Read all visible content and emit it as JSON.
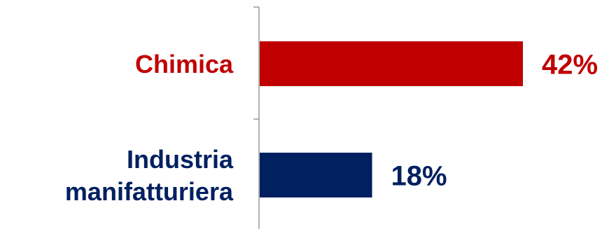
{
  "chart_data": {
    "type": "bar",
    "orientation": "horizontal",
    "categories": [
      "Chimica",
      "Industria manifatturiera"
    ],
    "category_label_lines": [
      [
        "Chimica"
      ],
      [
        "Industria",
        "manifatturiera"
      ]
    ],
    "values": [
      42,
      18
    ],
    "value_labels": [
      "42%",
      "18%"
    ],
    "unit": "%",
    "xlim": [
      0,
      50
    ],
    "grid": false,
    "legend": "none",
    "title": "",
    "xlabel": "",
    "ylabel": "",
    "colors": [
      "#c00000",
      "#002060"
    ]
  }
}
